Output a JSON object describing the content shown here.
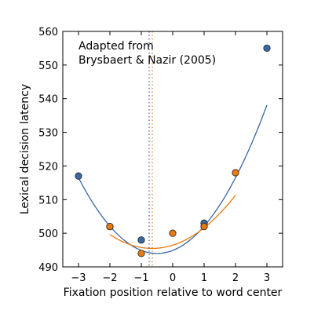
{
  "chart_data": {
    "type": "scatter",
    "xlabel": "Fixation position relative to word center",
    "ylabel": "Lexical decision latency",
    "xlim": [
      -3.5,
      3.5
    ],
    "ylim": [
      490,
      560
    ],
    "xticks": [
      -3,
      -2,
      -1,
      0,
      1,
      2,
      3
    ],
    "yticks": [
      490,
      500,
      510,
      520,
      530,
      540,
      550,
      560
    ],
    "xtick_labels": [
      "−3",
      "−2",
      "−1",
      "0",
      "1",
      "2",
      "3"
    ],
    "ytick_labels": [
      "490",
      "500",
      "510",
      "520",
      "530",
      "540",
      "550",
      "560"
    ],
    "annotation": [
      "Adapted from",
      "Brysbaert & Nazir (2005)"
    ],
    "grid": false,
    "series": [
      {
        "color": "#3b67a5",
        "points": [
          {
            "x": -3,
            "y": 517
          },
          {
            "x": -2,
            "y": 502
          },
          {
            "x": -1,
            "y": 498
          },
          {
            "x": 1,
            "y": 503
          },
          {
            "x": 3,
            "y": 555
          }
        ],
        "fit": {
          "a": 3.6,
          "vertex_x": -0.5,
          "vertex_y": 494,
          "x_range": [
            -3,
            3
          ]
        },
        "vline_x": -0.75
      },
      {
        "color": "#e87b0e",
        "points": [
          {
            "x": -2,
            "y": 502
          },
          {
            "x": -1,
            "y": 494
          },
          {
            "x": 0,
            "y": 500
          },
          {
            "x": 1,
            "y": 502
          },
          {
            "x": 2,
            "y": 518
          }
        ],
        "fit": {
          "a": 2.25,
          "vertex_x": -0.65,
          "vertex_y": 495.5,
          "x_range": [
            -2,
            2
          ]
        },
        "vline_x": -0.65
      }
    ]
  }
}
